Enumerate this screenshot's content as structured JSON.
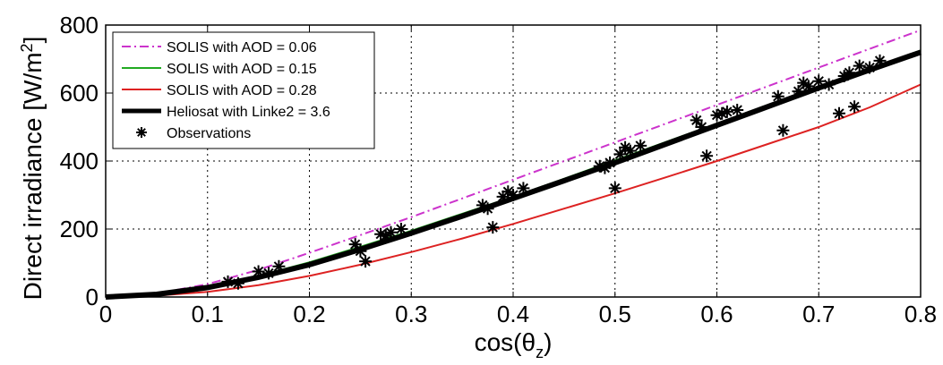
{
  "chart_data": {
    "type": "line",
    "xlabel": "cos(θ",
    "xlabel_sub": "z",
    "xlabel_close": ")",
    "ylabel": "Direct irradiance [W/m",
    "ylabel_sup": "2",
    "ylabel_close": "]",
    "xlim": [
      0,
      0.8
    ],
    "ylim": [
      0,
      800
    ],
    "xticks": [
      0,
      0.1,
      0.2,
      0.3,
      0.4,
      0.5,
      0.6,
      0.7,
      0.8
    ],
    "xtick_labels": [
      "0",
      "0.1",
      "0.2",
      "0.3",
      "0.4",
      "0.5",
      "0.6",
      "0.7",
      "0.8"
    ],
    "yticks": [
      0,
      200,
      400,
      600,
      800
    ],
    "ytick_labels": [
      "0",
      "200",
      "400",
      "600",
      "800"
    ],
    "grid": true,
    "legend_position": "top-left",
    "series": [
      {
        "name": "SOLIS with AOD = 0.06",
        "style": "dashdot",
        "color": "#cc33cc",
        "x": [
          0,
          0.05,
          0.1,
          0.15,
          0.2,
          0.25,
          0.3,
          0.35,
          0.4,
          0.45,
          0.5,
          0.55,
          0.6,
          0.65,
          0.7,
          0.75,
          0.8
        ],
        "y": [
          0,
          10,
          38,
          80,
          130,
          182,
          235,
          290,
          345,
          400,
          455,
          510,
          565,
          620,
          675,
          730,
          785
        ]
      },
      {
        "name": "SOLIS with AOD = 0.15",
        "style": "solid",
        "color": "#22aa22",
        "x": [
          0,
          0.05,
          0.1,
          0.15,
          0.2,
          0.25,
          0.3,
          0.35,
          0.4,
          0.45,
          0.5,
          0.55,
          0.6,
          0.65,
          0.7,
          0.75,
          0.8
        ],
        "y": [
          0,
          8,
          30,
          62,
          102,
          148,
          195,
          245,
          295,
          348,
          402,
          456,
          510,
          565,
          618,
          672,
          725
        ]
      },
      {
        "name": "SOLIS with AOD = 0.28",
        "style": "solid",
        "color": "#dd2222",
        "x": [
          0,
          0.05,
          0.1,
          0.15,
          0.2,
          0.25,
          0.3,
          0.35,
          0.4,
          0.45,
          0.5,
          0.55,
          0.6,
          0.65,
          0.7,
          0.75,
          0.8
        ],
        "y": [
          0,
          4,
          15,
          35,
          62,
          95,
          132,
          172,
          215,
          260,
          305,
          352,
          400,
          450,
          500,
          558,
          625
        ]
      },
      {
        "name": "Heliosat with Linke2 = 3.6",
        "style": "thick",
        "color": "#000000",
        "x": [
          0,
          0.05,
          0.1,
          0.15,
          0.2,
          0.25,
          0.3,
          0.35,
          0.4,
          0.45,
          0.5,
          0.55,
          0.6,
          0.65,
          0.7,
          0.75,
          0.8
        ],
        "y": [
          0,
          8,
          28,
          58,
          95,
          140,
          188,
          238,
          290,
          342,
          395,
          450,
          505,
          560,
          615,
          668,
          720
        ]
      },
      {
        "name": "Observations",
        "style": "marker",
        "color": "#000000",
        "x": [
          0.12,
          0.13,
          0.15,
          0.16,
          0.17,
          0.245,
          0.25,
          0.255,
          0.27,
          0.275,
          0.28,
          0.29,
          0.37,
          0.375,
          0.38,
          0.39,
          0.395,
          0.4,
          0.41,
          0.485,
          0.49,
          0.495,
          0.5,
          0.505,
          0.51,
          0.515,
          0.525,
          0.58,
          0.585,
          0.59,
          0.6,
          0.605,
          0.61,
          0.62,
          0.66,
          0.665,
          0.68,
          0.685,
          0.69,
          0.7,
          0.71,
          0.72,
          0.725,
          0.73,
          0.735,
          0.74,
          0.75,
          0.76
        ],
        "y": [
          45,
          40,
          75,
          70,
          90,
          155,
          135,
          105,
          185,
          180,
          190,
          200,
          270,
          260,
          205,
          295,
          310,
          300,
          320,
          385,
          380,
          395,
          320,
          420,
          440,
          430,
          445,
          520,
          500,
          415,
          535,
          540,
          545,
          550,
          590,
          490,
          605,
          630,
          620,
          635,
          625,
          540,
          650,
          660,
          560,
          680,
          675,
          695
        ]
      }
    ]
  }
}
